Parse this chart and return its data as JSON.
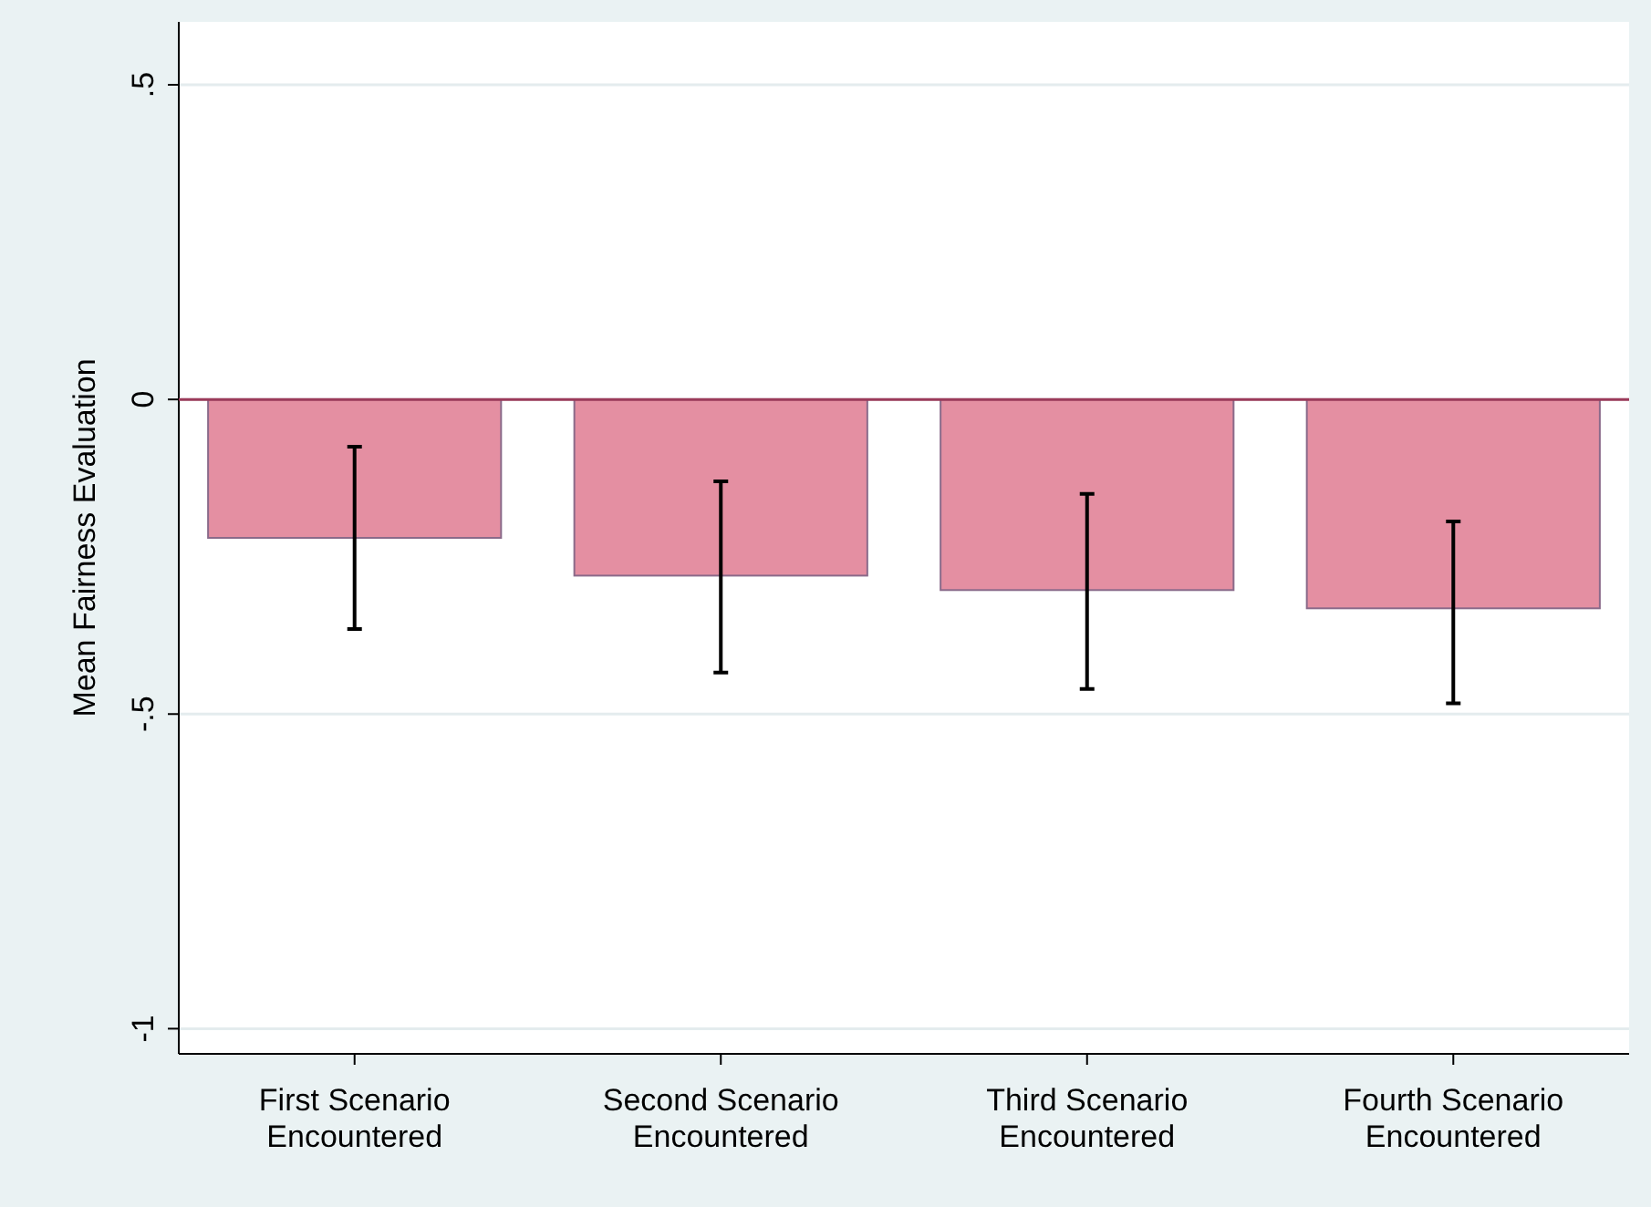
{
  "chart_data": {
    "type": "bar",
    "ylabel": "Mean Fairness Evaluation",
    "categories": [
      "First Scenario Encountered",
      "Second Scenario Encountered",
      "Third Scenario Encountered",
      "Fourth Scenario Encountered"
    ],
    "values": [
      -0.22,
      -0.28,
      -0.303,
      -0.332
    ],
    "errors": [
      [
        -0.365,
        -0.075
      ],
      [
        -0.434,
        -0.13
      ],
      [
        -0.46,
        -0.15
      ],
      [
        -0.483,
        -0.194
      ]
    ],
    "color": "#e48fa2",
    "ylim": [
      -1.04,
      0.6
    ],
    "yticks": [
      {
        "value": 0.5,
        "label": ".5"
      },
      {
        "value": 0,
        "label": "0"
      },
      {
        "value": -0.5,
        "label": "-.5"
      },
      {
        "value": -1,
        "label": "-1"
      }
    ],
    "grid": "y",
    "ref_lines": [
      {
        "axis": "y",
        "value": 0,
        "color": "#9b3a5a"
      }
    ]
  }
}
